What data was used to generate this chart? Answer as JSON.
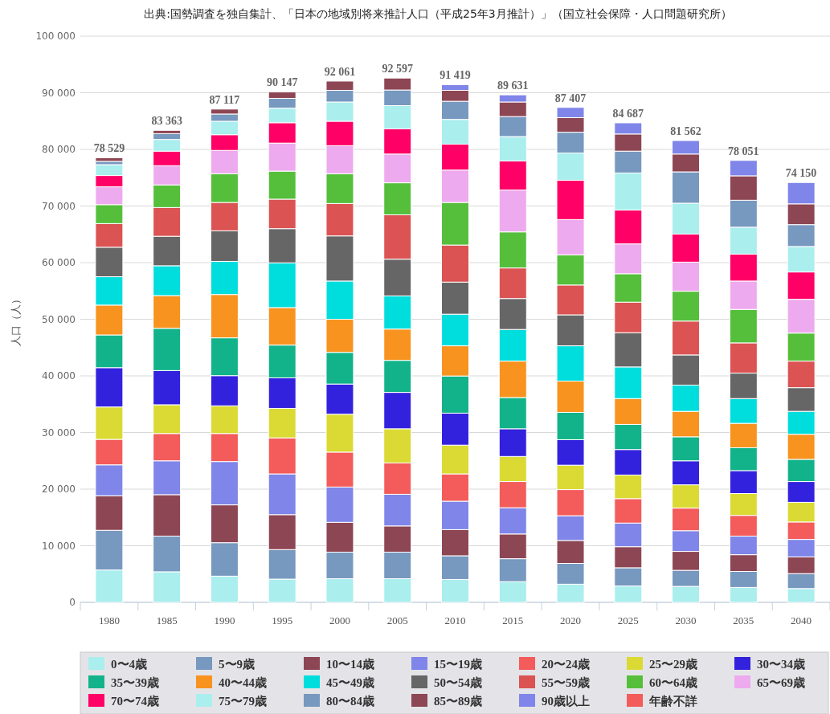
{
  "chart_data": {
    "type": "bar",
    "stacked": true,
    "title": "出典:国勢調査を独自集計、「日本の地域別将来推計人口（平成25年3月推計）」（国立社会保障・人口問題研究所）",
    "ylabel": "人口（人）",
    "categories": [
      "1980",
      "1985",
      "1990",
      "1995",
      "2000",
      "2005",
      "2010",
      "2015",
      "2020",
      "2025",
      "2030",
      "2035",
      "2040"
    ],
    "ylim": [
      0,
      100000
    ],
    "yticks": [
      {
        "value": 0,
        "label": "0"
      },
      {
        "value": 10000,
        "label": "10 000"
      },
      {
        "value": 20000,
        "label": "20 000"
      },
      {
        "value": 30000,
        "label": "30 000"
      },
      {
        "value": 40000,
        "label": "40 000"
      },
      {
        "value": 50000,
        "label": "50 000"
      },
      {
        "value": 60000,
        "label": "60 000"
      },
      {
        "value": 70000,
        "label": "70 000"
      },
      {
        "value": 80000,
        "label": "80 000"
      },
      {
        "value": 90000,
        "label": "90 000"
      },
      {
        "value": 100000,
        "label": "100 000"
      }
    ],
    "grid": "y",
    "legend": "bottom",
    "totals": [
      "78 529",
      "83 363",
      "87 117",
      "90 147",
      "92 061",
      "92 597",
      "91 419",
      "89 631",
      "87 407",
      "84 687",
      "81 562",
      "78 051",
      "74 150"
    ],
    "series": [
      {
        "name": "0〜4歳",
        "color": "#aaeeee",
        "values": [
          5720,
          5400,
          4630,
          4110,
          4180,
          4180,
          4050,
          3660,
          3210,
          2890,
          2830,
          2640,
          2440
        ]
      },
      {
        "name": "5〜9歳",
        "color": "#7798bf",
        "values": [
          7010,
          6300,
          5910,
          5210,
          4690,
          4690,
          4180,
          4050,
          3670,
          3220,
          2830,
          2820,
          2640
        ]
      },
      {
        "name": "10〜14歳",
        "color": "#8d4654",
        "values": [
          6100,
          7320,
          6680,
          6170,
          5270,
          4630,
          4620,
          4370,
          4050,
          3720,
          3340,
          2960,
          2950
        ]
      },
      {
        "name": "15〜19歳",
        "color": "#8085e9",
        "values": [
          5460,
          5980,
          7650,
          7200,
          6230,
          5590,
          5020,
          4630,
          4370,
          4180,
          3660,
          3280,
          3090
        ]
      },
      {
        "name": "20〜24歳",
        "color": "#f45b5b",
        "values": [
          4500,
          4820,
          4950,
          6360,
          6170,
          5530,
          4820,
          4630,
          4620,
          4310,
          3990,
          3660,
          3080
        ]
      },
      {
        "name": "25〜29歳",
        "color": "#dbda34",
        "values": [
          5720,
          5080,
          4890,
          5210,
          6690,
          6040,
          5080,
          4430,
          4310,
          4170,
          4110,
          3860,
          3470
        ]
      },
      {
        "name": "30〜34歳",
        "color": "#3322dd",
        "values": [
          6940,
          6040,
          5330,
          5390,
          5330,
          6420,
          5650,
          4890,
          4500,
          4500,
          4240,
          4050,
          3670
        ]
      },
      {
        "name": "35〜39歳",
        "color": "#12b38a",
        "values": [
          5780,
          7460,
          6680,
          5790,
          5590,
          5660,
          6560,
          5520,
          4820,
          4440,
          4240,
          4040,
          3920
        ]
      },
      {
        "name": "40〜44歳",
        "color": "#f7931e",
        "values": [
          5270,
          5780,
          7650,
          6620,
          5850,
          5530,
          5330,
          6430,
          5530,
          4560,
          4500,
          4310,
          4430
        ]
      },
      {
        "name": "45〜49歳",
        "color": "#00dddd",
        "values": [
          5010,
          5270,
          5850,
          7900,
          6750,
          5850,
          5590,
          5590,
          6230,
          5590,
          4630,
          4370,
          4050
        ]
      },
      {
        "name": "50〜54歳",
        "color": "#666666",
        "values": [
          5210,
          5210,
          5400,
          6040,
          7970,
          6490,
          5660,
          5460,
          5470,
          6040,
          5330,
          4500,
          4180
        ]
      },
      {
        "name": "55〜59歳",
        "color": "#db5353",
        "values": [
          4180,
          5070,
          5010,
          5210,
          5720,
          7840,
          6550,
          5400,
          5270,
          5400,
          5980,
          5340,
          4690
        ]
      },
      {
        "name": "60〜64歳",
        "color": "#55bf3b",
        "values": [
          3340,
          3990,
          5080,
          4950,
          5270,
          5650,
          7520,
          6370,
          5330,
          5020,
          5270,
          5910,
          4950
        ]
      },
      {
        "name": "65〜69歳",
        "color": "#eeaaee",
        "values": [
          3150,
          3400,
          4110,
          4950,
          4950,
          5080,
          5720,
          7400,
          6230,
          5270,
          5140,
          5010,
          5970
        ]
      },
      {
        "name": "70〜74歳",
        "color": "#ff0066",
        "values": [
          1990,
          2570,
          2770,
          3600,
          4310,
          4440,
          4570,
          5130,
          6940,
          5970,
          4950,
          4760,
          4820
        ]
      },
      {
        "name": "75〜79歳",
        "color": "#aaeeee",
        "values": [
          1930,
          2060,
          2380,
          2570,
          3400,
          4110,
          4370,
          4310,
          4820,
          6560,
          5460,
          4750,
          4500
        ]
      },
      {
        "name": "80〜84歳",
        "color": "#7798bf",
        "values": [
          580,
          1030,
          1280,
          1730,
          2060,
          2760,
          3210,
          3530,
          3660,
          3850,
          5530,
          4760,
          3860
        ]
      },
      {
        "name": "85〜89歳",
        "color": "#8d4654",
        "values": [
          639,
          583,
          867,
          1137,
          1631,
          2107,
          1930,
          2570,
          2580,
          3030,
          3150,
          4310,
          3670
        ]
      },
      {
        "name": "90歳以上",
        "color": "#8085e9",
        "values": [
          0,
          0,
          0,
          0,
          0,
          0,
          989,
          1261,
          1797,
          1967,
          2382,
          2721,
          3770
        ]
      },
      {
        "name": "年齢不詳",
        "color": "#f45b5b",
        "values": [
          0,
          0,
          0,
          0,
          0,
          0,
          0,
          0,
          0,
          0,
          0,
          0,
          0
        ]
      }
    ]
  }
}
